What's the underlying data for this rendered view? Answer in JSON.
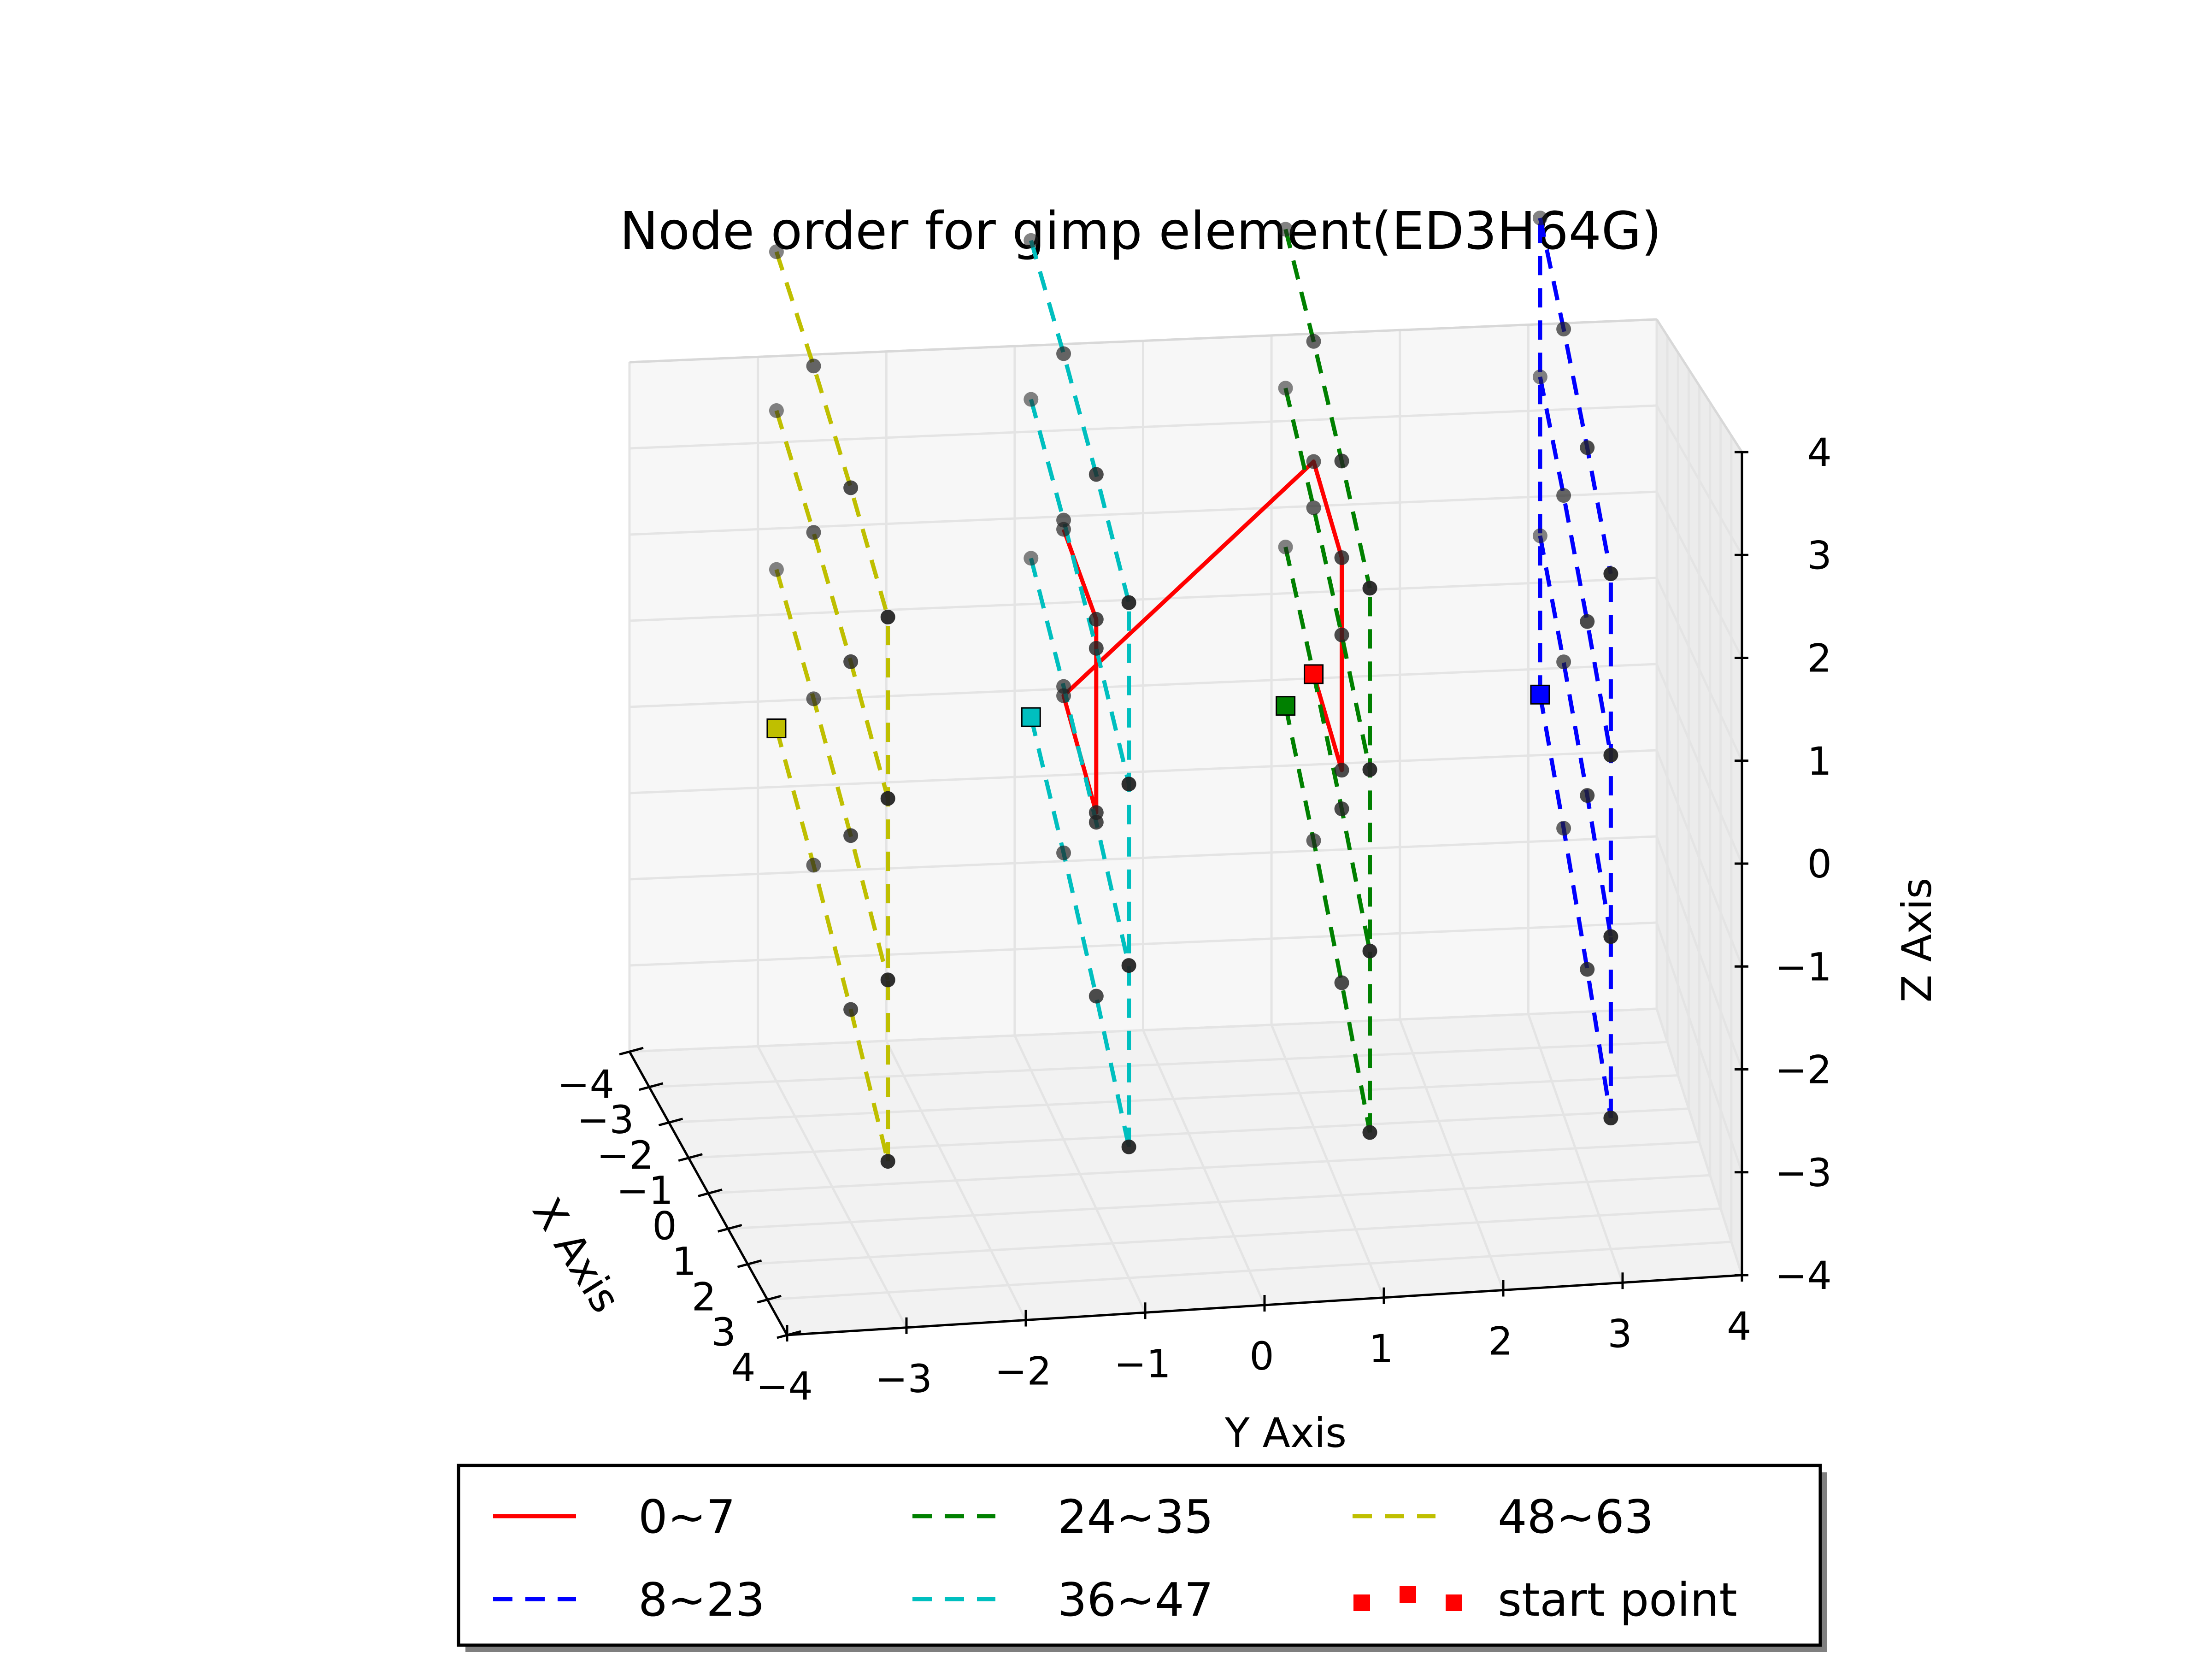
{
  "chart_data": {
    "type": "scatter",
    "projection": "3d",
    "title": "Node order for gimp element(ED3H64G)",
    "xlabel": "X Axis",
    "ylabel": "Y Axis",
    "zlabel": "Z Axis",
    "xlim": [
      -4,
      4
    ],
    "ylim": [
      -4,
      4
    ],
    "zlim": [
      -4,
      4
    ],
    "x_ticks": [
      "−4",
      "−3",
      "−2",
      "−1",
      "0",
      "1",
      "2",
      "3",
      "4"
    ],
    "y_ticks": [
      "−4",
      "−3",
      "−2",
      "−1",
      "0",
      "1",
      "2",
      "3",
      "4"
    ],
    "z_ticks": [
      "−4",
      "−3",
      "−2",
      "−1",
      "0",
      "1",
      "2",
      "3",
      "4"
    ],
    "grid": true,
    "legend_position": "bottom-center",
    "node_color": "#222222",
    "series": [
      {
        "name": "0~7",
        "color": "#ff0000",
        "linestyle": "solid",
        "paths": [
          [
            [
              -1,
              1,
              0.9
            ],
            [
              1,
              1,
              0.4
            ],
            [
              1,
              1,
              2.6
            ],
            [
              -1,
              1,
              3.2
            ],
            [
              -1,
              -1,
              0.8
            ],
            [
              1,
              -1,
              0.1
            ],
            [
              1,
              -1,
              2.1
            ],
            [
              -1,
              -1,
              2.6
            ]
          ]
        ],
        "start": [
          -1,
          1,
          0.9
        ]
      },
      {
        "name": "8~23",
        "color": "#0000ff",
        "linestyle": "dashed",
        "paths": [
          [
            [
              -3,
              3,
              0
            ],
            [
              -1,
              3,
              -0.9
            ],
            [
              1,
              3,
              -1.8
            ],
            [
              3,
              3,
              -2.7
            ]
          ],
          [
            [
              -3,
              3,
              1.8
            ],
            [
              -1,
              3,
              0.9
            ],
            [
              1,
              3,
              0
            ],
            [
              3,
              3,
              -0.9
            ]
          ],
          [
            [
              -3,
              3,
              3.6
            ],
            [
              -1,
              3,
              2.7
            ],
            [
              1,
              3,
              1.8
            ],
            [
              3,
              3,
              0.9
            ]
          ],
          [
            [
              -3,
              3,
              5.4
            ],
            [
              -1,
              3,
              4.5
            ],
            [
              1,
              3,
              3.6
            ],
            [
              3,
              3,
              2.7
            ]
          ],
          [
            [
              -3,
              3,
              0
            ],
            [
              -3,
              3,
              1.8
            ],
            [
              -3,
              3,
              3.6
            ],
            [
              -3,
              3,
              5.4
            ]
          ],
          [
            [
              3,
              3,
              -2.7
            ],
            [
              3,
              3,
              -0.9
            ],
            [
              3,
              3,
              0.9
            ],
            [
              3,
              3,
              2.7
            ]
          ]
        ],
        "start": [
          -3,
          3,
          0
        ]
      },
      {
        "name": "24~35",
        "color": "#008000",
        "linestyle": "dashed",
        "paths": [
          [
            [
              -3,
              1,
              0
            ],
            [
              -1,
              1,
              -0.9
            ],
            [
              1,
              1,
              -1.8
            ],
            [
              3,
              1,
              -2.7
            ]
          ],
          [
            [
              -3,
              1,
              1.8
            ],
            [
              -1,
              1,
              0.9
            ],
            [
              1,
              1,
              0
            ],
            [
              3,
              1,
              -0.9
            ]
          ],
          [
            [
              -3,
              1,
              3.6
            ],
            [
              -1,
              1,
              2.7
            ],
            [
              1,
              1,
              1.8
            ],
            [
              3,
              1,
              0.9
            ]
          ],
          [
            [
              -3,
              1,
              5.4
            ],
            [
              -1,
              1,
              4.5
            ],
            [
              1,
              1,
              3.6
            ],
            [
              3,
              1,
              2.7
            ]
          ],
          [
            [
              3,
              1,
              -2.7
            ],
            [
              3,
              1,
              -0.9
            ],
            [
              3,
              1,
              0.9
            ],
            [
              3,
              1,
              2.7
            ]
          ]
        ],
        "start": [
          -3,
          1,
          0
        ]
      },
      {
        "name": "36~47",
        "color": "#00bfbf",
        "linestyle": "dashed",
        "paths": [
          [
            [
              -3,
              -1,
              0
            ],
            [
              -1,
              -1,
              -0.9
            ],
            [
              1,
              -1,
              -1.8
            ],
            [
              3,
              -1,
              -2.7
            ]
          ],
          [
            [
              -3,
              -1,
              1.8
            ],
            [
              -1,
              -1,
              0.9
            ],
            [
              1,
              -1,
              0
            ],
            [
              3,
              -1,
              -0.9
            ]
          ],
          [
            [
              -3,
              -1,
              3.6
            ],
            [
              -1,
              -1,
              2.7
            ],
            [
              1,
              -1,
              1.8
            ],
            [
              3,
              -1,
              0.9
            ]
          ],
          [
            [
              -3,
              -1,
              5.4
            ],
            [
              -1,
              -1,
              4.5
            ],
            [
              1,
              -1,
              3.6
            ],
            [
              3,
              -1,
              2.7
            ]
          ],
          [
            [
              3,
              -1,
              -2.7
            ],
            [
              3,
              -1,
              -0.9
            ],
            [
              3,
              -1,
              0.9
            ],
            [
              3,
              -1,
              2.7
            ]
          ]
        ],
        "start": [
          -3,
          -1,
          0
        ]
      },
      {
        "name": "48~63",
        "color": "#bfbf00",
        "linestyle": "dashed",
        "paths": [
          [
            [
              -3,
              -3,
              0
            ],
            [
              -1,
              -3,
              -0.9
            ],
            [
              1,
              -3,
              -1.8
            ],
            [
              3,
              -3,
              -2.7
            ]
          ],
          [
            [
              -3,
              -3,
              1.8
            ],
            [
              -1,
              -3,
              0.9
            ],
            [
              1,
              -3,
              0
            ],
            [
              3,
              -3,
              -0.9
            ]
          ],
          [
            [
              -3,
              -3,
              3.6
            ],
            [
              -1,
              -3,
              2.7
            ],
            [
              1,
              -3,
              1.8
            ],
            [
              3,
              -3,
              0.9
            ]
          ],
          [
            [
              -3,
              -3,
              5.4
            ],
            [
              -1,
              -3,
              4.5
            ],
            [
              1,
              -3,
              3.6
            ],
            [
              3,
              -3,
              2.7
            ]
          ],
          [
            [
              3,
              -3,
              -2.7
            ],
            [
              3,
              -3,
              -0.9
            ],
            [
              3,
              -3,
              0.9
            ],
            [
              3,
              -3,
              2.7
            ]
          ]
        ],
        "start": [
          -3,
          -3,
          0
        ]
      }
    ],
    "legend": [
      {
        "label": "0~7",
        "color": "#ff0000",
        "style": "solid"
      },
      {
        "label": "8~23",
        "color": "#0000ff",
        "style": "dashed"
      },
      {
        "label": "24~35",
        "color": "#008000",
        "style": "dashed"
      },
      {
        "label": "36~47",
        "color": "#00bfbf",
        "style": "dashed"
      },
      {
        "label": "48~63",
        "color": "#bfbf00",
        "style": "dashed"
      },
      {
        "label": "start point",
        "color": "#ff0000",
        "style": "square-markers"
      }
    ]
  }
}
